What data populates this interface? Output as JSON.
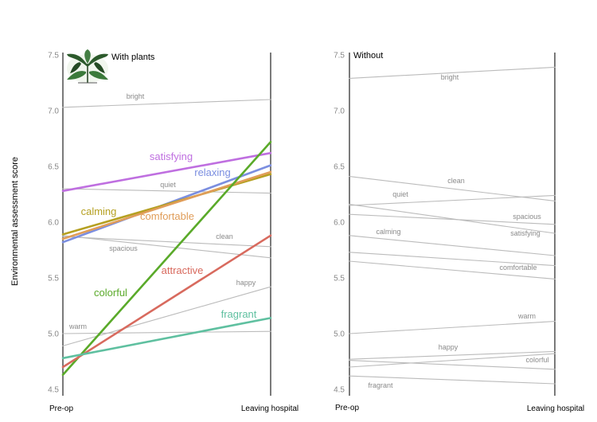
{
  "ylabel": "Environmental assessment score",
  "chart_data": [
    {
      "type": "line",
      "title": "With plants",
      "x": [
        "Pre-op",
        "Leaving hospital"
      ],
      "ylim": [
        4.5,
        7.5
      ],
      "yticks": [
        "7.5",
        "7.0",
        "6.5",
        "6.0",
        "5.5",
        "5.0",
        "4.5"
      ],
      "grid": false,
      "series": [
        {
          "name": "bright",
          "values": [
            7.03,
            7.1
          ],
          "color": "#bbbbbb",
          "highlight": false
        },
        {
          "name": "quiet",
          "values": [
            6.3,
            6.26
          ],
          "color": "#bbbbbb",
          "highlight": false
        },
        {
          "name": "spacious",
          "values": [
            5.88,
            5.68
          ],
          "color": "#bbbbbb",
          "highlight": false
        },
        {
          "name": "clean",
          "values": [
            5.87,
            5.78
          ],
          "color": "#bbbbbb",
          "highlight": false
        },
        {
          "name": "happy",
          "values": [
            4.89,
            5.42
          ],
          "color": "#bbbbbb",
          "highlight": false
        },
        {
          "name": "warm",
          "values": [
            5.0,
            5.02
          ],
          "color": "#bbbbbb",
          "highlight": false
        },
        {
          "name": "satisfying",
          "values": [
            6.28,
            6.62
          ],
          "color": "#bf6fe0",
          "highlight": true
        },
        {
          "name": "relaxing",
          "values": [
            5.82,
            6.51
          ],
          "color": "#7b8ee0",
          "highlight": true
        },
        {
          "name": "calming",
          "values": [
            5.89,
            6.43
          ],
          "color": "#b5a021",
          "highlight": true
        },
        {
          "name": "comfortable",
          "values": [
            5.85,
            6.45
          ],
          "color": "#e09d59",
          "highlight": true
        },
        {
          "name": "colorful",
          "values": [
            4.63,
            6.72
          ],
          "color": "#5aaa2a",
          "highlight": true
        },
        {
          "name": "attractive",
          "values": [
            4.7,
            5.88
          ],
          "color": "#d86a5e",
          "highlight": true
        },
        {
          "name": "fragrant",
          "values": [
            4.78,
            5.14
          ],
          "color": "#5fc0a0",
          "highlight": true
        }
      ]
    },
    {
      "type": "line",
      "title": "Without",
      "x": [
        "Pre-op",
        "Leaving hospital"
      ],
      "ylim": [
        4.5,
        7.5
      ],
      "yticks": [
        "7.5",
        "7.0",
        "6.5",
        "6.0",
        "5.5",
        "5.0",
        "4.5"
      ],
      "grid": false,
      "series": [
        {
          "name": "bright",
          "values": [
            7.29,
            7.39
          ],
          "color": "#bbbbbb",
          "highlight": false
        },
        {
          "name": "clean",
          "values": [
            6.41,
            6.19
          ],
          "color": "#bbbbbb",
          "highlight": false
        },
        {
          "name": "quiet",
          "values": [
            6.15,
            6.24
          ],
          "color": "#bbbbbb",
          "highlight": false
        },
        {
          "name": "spacious",
          "values": [
            6.07,
            5.98
          ],
          "color": "#bbbbbb",
          "highlight": false
        },
        {
          "name": "satisfying",
          "values": [
            6.16,
            5.9
          ],
          "color": "#bbbbbb",
          "highlight": false
        },
        {
          "name": "calming",
          "values": [
            5.88,
            5.7
          ],
          "color": "#bbbbbb",
          "highlight": false
        },
        {
          "name": "comfortable",
          "values": [
            5.73,
            5.61
          ],
          "color": "#bbbbbb",
          "highlight": false
        },
        {
          "name": "",
          "values": [
            5.65,
            5.49
          ],
          "color": "#bbbbbb",
          "highlight": false
        },
        {
          "name": "warm",
          "values": [
            5.0,
            5.11
          ],
          "color": "#bbbbbb",
          "highlight": false
        },
        {
          "name": "happy",
          "values": [
            4.77,
            4.84
          ],
          "color": "#bbbbbb",
          "highlight": false
        },
        {
          "name": "colorful",
          "values": [
            4.76,
            4.68
          ],
          "color": "#bbbbbb",
          "highlight": false
        },
        {
          "name": "",
          "values": [
            4.7,
            4.82
          ],
          "color": "#bbbbbb",
          "highlight": false
        },
        {
          "name": "fragrant",
          "values": [
            4.62,
            4.55
          ],
          "color": "#bbbbbb",
          "highlight": false
        }
      ]
    }
  ]
}
